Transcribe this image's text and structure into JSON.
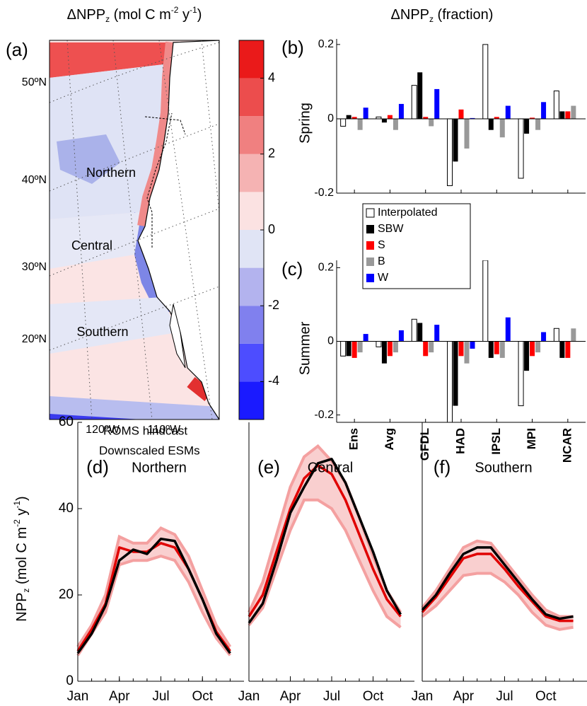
{
  "map": {
    "panel": "(a)",
    "title_parts": [
      "ΔNPP",
      "z",
      " (mol C m",
      "-2",
      " y",
      "-1",
      ")"
    ],
    "colorbar": {
      "lim": [
        -5,
        5
      ],
      "ticks": [
        4,
        2,
        0,
        -2,
        -4
      ],
      "colors": [
        "#1a1aff",
        "#4d4dff",
        "#8080ee",
        "#b3b3ee",
        "#e0e4f5",
        "#fbe2e2",
        "#f5b3b3",
        "#f08080",
        "#ec4d4d",
        "#ea1a1a"
      ]
    },
    "lat_labels": [
      "50ºN",
      "40ºN",
      "30ºN",
      "20ºN"
    ],
    "lon_labels": [
      "120ºW",
      "110ºW"
    ],
    "regions": [
      "Northern",
      "Central",
      "Southern"
    ]
  },
  "bar_title_parts": [
    "ΔNPP",
    "z",
    " (fraction)"
  ],
  "line_ylabel_parts": [
    "NPP",
    "z",
    " (mol C m",
    "-2",
    " y",
    "-1",
    ")"
  ],
  "chart_data": [
    {
      "type": "bar",
      "panel": "(b)",
      "ylabel": "Spring",
      "ylim": [
        -0.2,
        0.215
      ],
      "yticks": [
        -0.2,
        0,
        0.2
      ],
      "legend": true,
      "series": [
        {
          "name": "Interpolated",
          "color": "#ffffff",
          "values": [
            -0.02,
            0.005,
            0.09,
            -0.18,
            0.2,
            -0.16,
            0.075
          ]
        },
        {
          "name": "SBW",
          "color": "#000000",
          "values": [
            0.01,
            -0.01,
            0.125,
            -0.115,
            -0.03,
            -0.04,
            0.02
          ]
        },
        {
          "name": "S",
          "color": "#ff0000",
          "values": [
            0.005,
            0.01,
            0.005,
            0.025,
            0.005,
            0.003,
            0.02
          ]
        },
        {
          "name": "B",
          "color": "#999999",
          "values": [
            -0.03,
            -0.03,
            -0.02,
            -0.08,
            -0.05,
            -0.03,
            0.035
          ]
        },
        {
          "name": "W",
          "color": "#0000ff",
          "values": [
            0.03,
            0.04,
            0.08,
            0.002,
            0.035,
            0.045,
            0
          ]
        }
      ]
    },
    {
      "type": "bar",
      "panel": "(c)",
      "ylabel": "Summer",
      "ylim": [
        -0.22,
        0.22
      ],
      "yticks": [
        -0.2,
        0,
        0.2
      ],
      "categories": [
        "Ens",
        "Avg",
        "GFDL",
        "HAD",
        "IPSL",
        "MPI",
        "NCAR"
      ],
      "series": [
        {
          "color": "#ffffff",
          "values": [
            -0.04,
            -0.015,
            0.06,
            -0.22,
            0.22,
            -0.175,
            0.035
          ]
        },
        {
          "color": "#000000",
          "values": [
            -0.04,
            -0.06,
            0.05,
            -0.175,
            -0.045,
            -0.08,
            -0.045
          ]
        },
        {
          "color": "#ff0000",
          "values": [
            -0.045,
            -0.04,
            -0.04,
            -0.04,
            -0.035,
            -0.04,
            -0.045
          ]
        },
        {
          "color": "#999999",
          "values": [
            -0.03,
            -0.03,
            -0.03,
            -0.06,
            -0.045,
            -0.03,
            0.035
          ]
        },
        {
          "color": "#0000ff",
          "values": [
            0.02,
            0.03,
            0.045,
            -0.02,
            0.065,
            0.025,
            0
          ]
        }
      ]
    },
    {
      "type": "line",
      "panel": "(d)",
      "title": "Northern",
      "x": [
        1,
        2,
        3,
        4,
        5,
        6,
        7,
        8,
        9,
        10,
        11,
        12
      ],
      "xlim": [
        1,
        13
      ],
      "xticks": [
        {
          "value": 1,
          "label": "Jan"
        },
        {
          "value": 4,
          "label": "Apr"
        },
        {
          "value": 7,
          "label": "Jul"
        },
        {
          "value": 10,
          "label": "Oct"
        }
      ],
      "ylim": [
        0,
        60
      ],
      "yticks": [
        0,
        20,
        40,
        60
      ],
      "legend": true,
      "series": [
        {
          "name": "ROMS hindcast",
          "color": "#000000",
          "values": [
            6.5,
            11,
            17.5,
            28,
            30.5,
            29.5,
            33,
            32.5,
            26,
            19,
            11,
            6.5
          ]
        },
        {
          "name": "Downscaled ESMs",
          "color": "#e00000",
          "band_color": "#f4a0a0",
          "values": [
            7,
            12,
            18,
            31,
            30,
            30,
            32,
            31,
            26,
            19,
            11.5,
            7
          ],
          "upper": [
            8,
            13,
            20,
            33.5,
            32,
            32,
            35.5,
            34,
            29,
            21,
            13,
            8
          ],
          "lower": [
            6,
            11,
            16,
            27,
            28,
            28,
            29,
            28,
            23,
            16,
            10,
            6
          ]
        }
      ]
    },
    {
      "type": "line",
      "panel": "(e)",
      "title": "Central",
      "x": [
        1,
        2,
        3,
        4,
        5,
        6,
        7,
        8,
        9,
        10,
        11,
        12
      ],
      "xlim": [
        1,
        13
      ],
      "xticks": [
        {
          "value": 1,
          "label": "Jan"
        },
        {
          "value": 4,
          "label": "Apr"
        },
        {
          "value": 7,
          "label": "Jul"
        },
        {
          "value": 10,
          "label": "Oct"
        }
      ],
      "ylim": [
        0,
        60
      ],
      "series": [
        {
          "color": "#000000",
          "values": [
            13.5,
            18,
            28,
            39,
            45,
            50.5,
            51.5,
            46,
            38,
            30,
            21,
            15.5
          ]
        },
        {
          "color": "#e00000",
          "band_color": "#f4a0a0",
          "values": [
            15,
            20,
            30,
            40,
            47,
            50,
            48,
            42,
            34,
            26,
            19,
            15
          ],
          "upper": [
            16,
            23,
            34,
            45,
            52,
            54.5,
            51,
            46,
            38,
            29,
            21,
            16
          ],
          "lower": [
            13,
            17,
            26,
            35,
            42,
            42,
            40,
            35,
            28,
            21,
            15,
            12.5
          ]
        }
      ]
    },
    {
      "type": "line",
      "panel": "(f)",
      "title": "Southern",
      "x": [
        1,
        2,
        3,
        4,
        5,
        6,
        7,
        8,
        9,
        10,
        11,
        12
      ],
      "xlim": [
        1,
        13
      ],
      "xticks": [
        {
          "value": 1,
          "label": "Jan"
        },
        {
          "value": 4,
          "label": "Apr"
        },
        {
          "value": 7,
          "label": "Jul"
        },
        {
          "value": 10,
          "label": "Oct"
        }
      ],
      "ylim": [
        0,
        60
      ],
      "series": [
        {
          "color": "#000000",
          "values": [
            16.5,
            20,
            25,
            29.5,
            31,
            31,
            27,
            23,
            19,
            15.5,
            14.5,
            15
          ]
        },
        {
          "color": "#e00000",
          "band_color": "#f4a0a0",
          "values": [
            16,
            19.5,
            24,
            28.5,
            29.5,
            29.5,
            26,
            22,
            18.5,
            15,
            14,
            14
          ],
          "upper": [
            17,
            21,
            26,
            31,
            32.5,
            32,
            28,
            24,
            20,
            16.5,
            15,
            15
          ],
          "lower": [
            15,
            17.5,
            21,
            24.5,
            25,
            25,
            23,
            20,
            16,
            13,
            12,
            12.5
          ]
        }
      ]
    }
  ]
}
